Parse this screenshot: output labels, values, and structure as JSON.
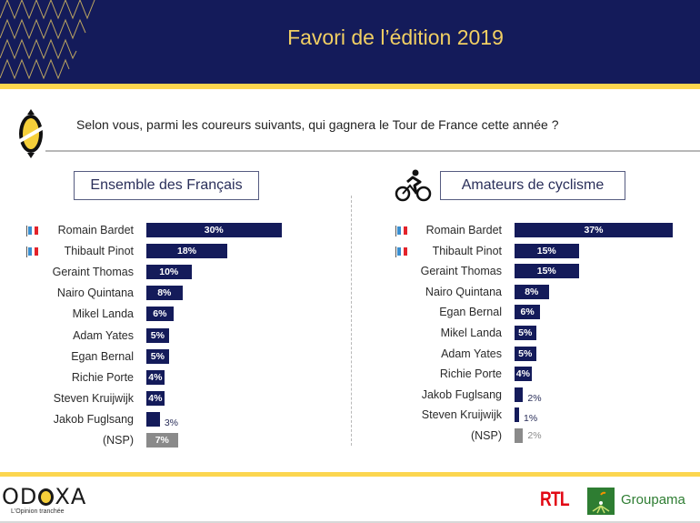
{
  "header": {
    "title": "Favori de l’édition 2019"
  },
  "question": "Selon vous, parmi les coureurs suivants, qui gagnera le Tour de France cette année ?",
  "colors": {
    "navy": "#141b5a",
    "gold": "#f1cf63",
    "yellow": "#fcd64f",
    "nsp_gray": "#8a8a8a",
    "flag_blue": "#3a8fd0",
    "flag_red": "#e3232b"
  },
  "icons": {
    "bike": "cyclist-icon",
    "flag": "french-flag-icon",
    "brand": "odoxa-mark-icon"
  },
  "footer": {
    "brand": "ODOXA",
    "brand_pre": "OD",
    "brand_post": "XA",
    "tagline": "L'Opinion tranchée",
    "partner1": "RTL",
    "partner2": "Groupama"
  },
  "chart_data": [
    {
      "type": "bar",
      "orientation": "horizontal",
      "title": "Ensemble des Français",
      "unit": "%",
      "categories": [
        "Romain Bardet",
        "Thibault Pinot",
        "Geraint Thomas",
        "Nairo Quintana",
        "Mikel Landa",
        "Adam Yates",
        "Egan Bernal",
        "Richie Porte",
        "Steven Kruijwijk",
        "Jakob Fuglsang",
        "(NSP)"
      ],
      "values": [
        30,
        18,
        10,
        8,
        6,
        5,
        5,
        4,
        4,
        3,
        7
      ],
      "labels": [
        "30%",
        "18%",
        "10%",
        "8%",
        "6%",
        "5%",
        "5%",
        "4%",
        "4%",
        "3%",
        "7%"
      ],
      "french": [
        true,
        true,
        false,
        false,
        false,
        false,
        false,
        false,
        false,
        false,
        false
      ],
      "xlim": [
        0,
        100
      ]
    },
    {
      "type": "bar",
      "orientation": "horizontal",
      "title": "Amateurs de cyclisme",
      "unit": "%",
      "categories": [
        "Romain Bardet",
        "Thibault Pinot",
        "Geraint Thomas",
        "Nairo Quintana",
        "Egan Bernal",
        "Mikel Landa",
        "Adam Yates",
        "Richie Porte",
        "Jakob Fuglsang",
        "Steven Kruijwijk",
        "(NSP)"
      ],
      "values": [
        37,
        15,
        15,
        8,
        6,
        5,
        5,
        4,
        2,
        1,
        2
      ],
      "labels": [
        "37%",
        "15%",
        "15%",
        "8%",
        "6%",
        "5%",
        "5%",
        "4%",
        "2%",
        "1%",
        "2%"
      ],
      "french": [
        true,
        true,
        false,
        false,
        false,
        false,
        false,
        false,
        false,
        false,
        false
      ],
      "xlim": [
        0,
        100
      ]
    }
  ]
}
